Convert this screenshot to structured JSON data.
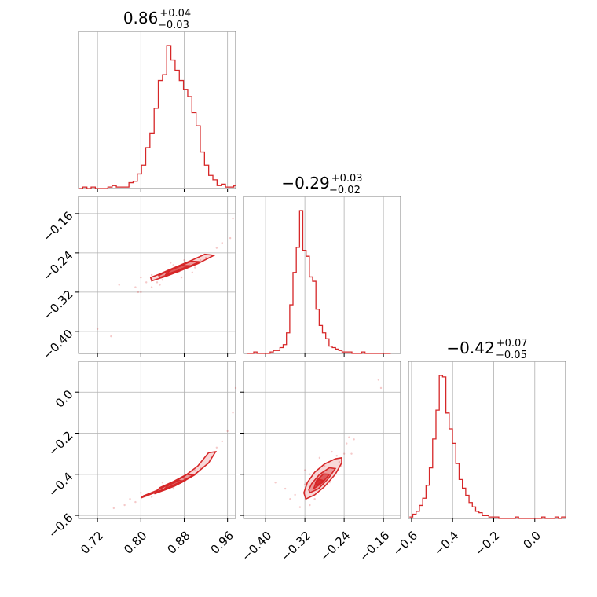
{
  "chart_data": {
    "type": "corner",
    "colors": {
      "series": "#d62728",
      "grid": "#b0b0b0",
      "frame": "#808080"
    },
    "grid": true,
    "parameters": [
      {
        "median": 0.86,
        "title": {
          "value": "0.86",
          "upper": "+0.04",
          "lower": "−0.03"
        },
        "range": [
          0.685,
          0.975
        ],
        "ticks": [
          0.72,
          0.8,
          0.88,
          0.96
        ],
        "tick_labels": [
          "0.72",
          "0.80",
          "0.88",
          "0.96"
        ],
        "hist_bins": [
          0.685,
          0.6927,
          0.7005,
          0.7082,
          0.716,
          0.7237,
          0.7315,
          0.7392,
          0.747,
          0.7547,
          0.7625,
          0.7702,
          0.778,
          0.7857,
          0.7935,
          0.8012,
          0.809,
          0.8167,
          0.8245,
          0.8322,
          0.84,
          0.8477,
          0.8555,
          0.8632,
          0.871,
          0.8787,
          0.8865,
          0.8942,
          0.902,
          0.9097,
          0.9175,
          0.9252,
          0.933,
          0.9407,
          0.9485,
          0.9562,
          0.964,
          0.9717,
          0.975
        ],
        "hist_counts": [
          0.0,
          0.01,
          0.0,
          0.01,
          0.0,
          0.0,
          0.0,
          0.01,
          0.02,
          0.01,
          0.01,
          0.01,
          0.04,
          0.05,
          0.1,
          0.16,
          0.28,
          0.38,
          0.55,
          0.74,
          0.78,
          0.98,
          0.88,
          0.81,
          0.74,
          0.68,
          0.63,
          0.52,
          0.43,
          0.25,
          0.16,
          0.09,
          0.06,
          0.02,
          0.03,
          0.01,
          0.01,
          0.02
        ]
      },
      {
        "median": -0.29,
        "title": {
          "value": "−0.29",
          "upper": "+0.03",
          "lower": "−0.02"
        },
        "range": [
          -0.445,
          -0.125
        ],
        "ticks": [
          -0.4,
          -0.32,
          -0.24,
          -0.16
        ],
        "tick_labels": [
          "−0.40",
          "−0.32",
          "−0.24",
          "−0.16"
        ],
        "hist_bins": [
          -0.4375,
          -0.4308,
          -0.4242,
          -0.4175,
          -0.4108,
          -0.4042,
          -0.3975,
          -0.3908,
          -0.3842,
          -0.3775,
          -0.3708,
          -0.3642,
          -0.3575,
          -0.3508,
          -0.3442,
          -0.3375,
          -0.3308,
          -0.3242,
          -0.3175,
          -0.3108,
          -0.3042,
          -0.2975,
          -0.2908,
          -0.2842,
          -0.2775,
          -0.2708,
          -0.2642,
          -0.2575,
          -0.2508,
          -0.2442,
          -0.2375,
          -0.2308,
          -0.2242,
          -0.2175,
          -0.2108,
          -0.2042,
          -0.1975,
          -0.1908,
          -0.1842,
          -0.1775,
          -0.1708,
          -0.1642,
          -0.1575,
          -0.1508,
          -0.145
        ],
        "hist_counts": [
          0.0,
          0.0,
          0.01,
          0.0,
          0.0,
          0.0,
          0.0,
          0.01,
          0.02,
          0.02,
          0.04,
          0.06,
          0.14,
          0.33,
          0.55,
          0.72,
          0.97,
          0.7,
          0.66,
          0.52,
          0.49,
          0.3,
          0.19,
          0.14,
          0.1,
          0.05,
          0.04,
          0.03,
          0.02,
          0.01,
          0.01,
          0.01,
          0.0,
          0.0,
          0.0,
          0.01,
          0.0,
          0.0,
          0.0,
          0.0,
          0.0,
          0.0,
          0.0,
          0.0
        ]
      },
      {
        "median": -0.42,
        "title": {
          "value": "−0.42",
          "upper": "+0.07",
          "lower": "−0.05"
        },
        "range": [
          -0.615,
          0.15
        ],
        "ticks": [
          -0.6,
          -0.4,
          -0.2,
          0.0
        ],
        "tick_labels": [
          "−0.6",
          "−0.4",
          "−0.2",
          "0.0"
        ],
        "hist_bins": [
          -0.61,
          -0.5939,
          -0.5778,
          -0.5617,
          -0.5456,
          -0.5295,
          -0.5134,
          -0.4973,
          -0.4812,
          -0.4651,
          -0.449,
          -0.4329,
          -0.4168,
          -0.4007,
          -0.3846,
          -0.3685,
          -0.3524,
          -0.3363,
          -0.3202,
          -0.3041,
          -0.288,
          -0.2719,
          -0.2558,
          -0.2397,
          -0.2236,
          -0.2075,
          -0.1914,
          -0.1753,
          -0.1592,
          -0.1431,
          -0.127,
          -0.1109,
          -0.0948,
          -0.0787,
          -0.0626,
          -0.0465,
          -0.0304,
          -0.0143,
          0.0018,
          0.0179,
          0.034,
          0.0501,
          0.0662,
          0.0823,
          0.0984,
          0.1145,
          0.1306,
          0.15
        ],
        "hist_counts": [
          0.01,
          0.03,
          0.05,
          0.09,
          0.14,
          0.23,
          0.35,
          0.55,
          0.75,
          0.99,
          0.98,
          0.73,
          0.62,
          0.52,
          0.38,
          0.27,
          0.21,
          0.16,
          0.11,
          0.08,
          0.05,
          0.04,
          0.02,
          0.02,
          0.01,
          0.01,
          0.01,
          0.0,
          0.0,
          0.0,
          0.0,
          0.0,
          0.01,
          0.0,
          0.0,
          0.0,
          0.0,
          0.0,
          0.0,
          0.0,
          0.01,
          0.0,
          0.0,
          0.0,
          0.01,
          0.0,
          0.01
        ]
      }
    ],
    "pairs": [
      {
        "row": 1,
        "col": 0,
        "contour_levels": [
          [
            [
              0.82,
              -0.297
            ],
            [
              0.848,
              -0.287
            ],
            [
              0.876,
              -0.275
            ],
            [
              0.905,
              -0.262
            ],
            [
              0.935,
              -0.245
            ],
            [
              0.918,
              -0.243
            ],
            [
              0.89,
              -0.257
            ],
            [
              0.862,
              -0.27
            ],
            [
              0.835,
              -0.283
            ],
            [
              0.818,
              -0.29
            ]
          ],
          [
            [
              0.835,
              -0.29
            ],
            [
              0.86,
              -0.281
            ],
            [
              0.885,
              -0.27
            ],
            [
              0.908,
              -0.258
            ],
            [
              0.893,
              -0.257
            ],
            [
              0.87,
              -0.268
            ],
            [
              0.846,
              -0.279
            ],
            [
              0.833,
              -0.286
            ]
          ],
          [
            [
              0.845,
              -0.285
            ],
            [
              0.868,
              -0.276
            ],
            [
              0.89,
              -0.266
            ],
            [
              0.875,
              -0.266
            ],
            [
              0.855,
              -0.275
            ]
          ]
        ],
        "samples": [
          [
            0.76,
            -0.305
          ],
          [
            0.79,
            -0.31
          ],
          [
            0.81,
            -0.3
          ],
          [
            0.8,
            -0.29
          ],
          [
            0.83,
            -0.3
          ],
          [
            0.85,
            -0.275
          ],
          [
            0.87,
            -0.28
          ],
          [
            0.89,
            -0.265
          ],
          [
            0.9,
            -0.27
          ],
          [
            0.92,
            -0.25
          ],
          [
            0.94,
            -0.23
          ],
          [
            0.95,
            -0.22
          ],
          [
            0.97,
            -0.17
          ],
          [
            0.965,
            -0.21
          ],
          [
            0.72,
            -0.395
          ],
          [
            0.745,
            -0.41
          ],
          [
            0.795,
            -0.32
          ],
          [
            0.82,
            -0.285
          ],
          [
            0.84,
            -0.295
          ],
          [
            0.86,
            -0.265
          ],
          [
            0.88,
            -0.255
          ],
          [
            0.91,
            -0.255
          ],
          [
            0.8,
            -0.32
          ],
          [
            0.82,
            -0.31
          ],
          [
            0.835,
            -0.305
          ],
          [
            0.855,
            -0.26
          ],
          [
            0.875,
            -0.29
          ],
          [
            0.895,
            -0.28
          ]
        ]
      },
      {
        "row": 2,
        "col": 0,
        "contour_levels": [
          [
            [
              0.8,
              -0.515
            ],
            [
              0.825,
              -0.49
            ],
            [
              0.85,
              -0.465
            ],
            [
              0.875,
              -0.435
            ],
            [
              0.9,
              -0.4
            ],
            [
              0.925,
              -0.345
            ],
            [
              0.938,
              -0.29
            ],
            [
              0.925,
              -0.295
            ],
            [
              0.905,
              -0.36
            ],
            [
              0.88,
              -0.41
            ],
            [
              0.855,
              -0.445
            ],
            [
              0.83,
              -0.478
            ],
            [
              0.805,
              -0.505
            ]
          ],
          [
            [
              0.825,
              -0.495
            ],
            [
              0.85,
              -0.47
            ],
            [
              0.875,
              -0.44
            ],
            [
              0.898,
              -0.405
            ],
            [
              0.885,
              -0.4
            ],
            [
              0.86,
              -0.435
            ],
            [
              0.835,
              -0.465
            ]
          ],
          [
            [
              0.84,
              -0.48
            ],
            [
              0.862,
              -0.458
            ],
            [
              0.88,
              -0.433
            ],
            [
              0.87,
              -0.43
            ],
            [
              0.85,
              -0.455
            ]
          ]
        ],
        "samples": [
          [
            0.75,
            -0.565
          ],
          [
            0.77,
            -0.55
          ],
          [
            0.79,
            -0.535
          ],
          [
            0.81,
            -0.505
          ],
          [
            0.83,
            -0.475
          ],
          [
            0.85,
            -0.46
          ],
          [
            0.87,
            -0.43
          ],
          [
            0.89,
            -0.4
          ],
          [
            0.91,
            -0.37
          ],
          [
            0.93,
            -0.32
          ],
          [
            0.95,
            -0.24
          ],
          [
            0.96,
            -0.19
          ],
          [
            0.97,
            -0.1
          ],
          [
            0.975,
            0.02
          ],
          [
            0.78,
            -0.52
          ],
          [
            0.8,
            -0.49
          ],
          [
            0.82,
            -0.51
          ],
          [
            0.84,
            -0.44
          ],
          [
            0.86,
            -0.47
          ],
          [
            0.88,
            -0.42
          ],
          [
            0.9,
            -0.38
          ],
          [
            0.94,
            -0.27
          ]
        ]
      },
      {
        "row": 2,
        "col": 1,
        "contour_levels": [
          [
            [
              -0.318,
              -0.52
            ],
            [
              -0.3,
              -0.5
            ],
            [
              -0.28,
              -0.46
            ],
            [
              -0.258,
              -0.4
            ],
            [
              -0.245,
              -0.345
            ],
            [
              -0.245,
              -0.32
            ],
            [
              -0.258,
              -0.325
            ],
            [
              -0.28,
              -0.35
            ],
            [
              -0.3,
              -0.39
            ],
            [
              -0.315,
              -0.44
            ],
            [
              -0.322,
              -0.49
            ]
          ],
          [
            [
              -0.31,
              -0.49
            ],
            [
              -0.292,
              -0.47
            ],
            [
              -0.272,
              -0.42
            ],
            [
              -0.258,
              -0.372
            ],
            [
              -0.27,
              -0.368
            ],
            [
              -0.29,
              -0.4
            ],
            [
              -0.306,
              -0.445
            ],
            [
              -0.312,
              -0.475
            ]
          ],
          [
            [
              -0.302,
              -0.47
            ],
            [
              -0.284,
              -0.44
            ],
            [
              -0.27,
              -0.4
            ],
            [
              -0.282,
              -0.398
            ],
            [
              -0.296,
              -0.43
            ]
          ],
          [
            [
              -0.296,
              -0.455
            ],
            [
              -0.283,
              -0.43
            ],
            [
              -0.29,
              -0.425
            ],
            [
              -0.298,
              -0.44
            ]
          ]
        ],
        "samples": [
          [
            -0.33,
            -0.56
          ],
          [
            -0.34,
            -0.5
          ],
          [
            -0.35,
            -0.52
          ],
          [
            -0.32,
            -0.45
          ],
          [
            -0.31,
            -0.55
          ],
          [
            -0.3,
            -0.52
          ],
          [
            -0.29,
            -0.47
          ],
          [
            -0.27,
            -0.44
          ],
          [
            -0.26,
            -0.38
          ],
          [
            -0.25,
            -0.34
          ],
          [
            -0.24,
            -0.3
          ],
          [
            -0.235,
            -0.25
          ],
          [
            -0.23,
            -0.22
          ],
          [
            -0.225,
            -0.3
          ],
          [
            -0.22,
            -0.23
          ],
          [
            -0.17,
            0.06
          ],
          [
            -0.165,
            0.02
          ],
          [
            -0.38,
            -0.44
          ],
          [
            -0.36,
            -0.47
          ],
          [
            -0.31,
            -0.4
          ],
          [
            -0.28,
            -0.36
          ],
          [
            -0.27,
            -0.41
          ],
          [
            -0.255,
            -0.31
          ],
          [
            -0.245,
            -0.36
          ],
          [
            -0.32,
            -0.38
          ],
          [
            -0.29,
            -0.32
          ],
          [
            -0.265,
            -0.29
          ]
        ]
      }
    ]
  }
}
